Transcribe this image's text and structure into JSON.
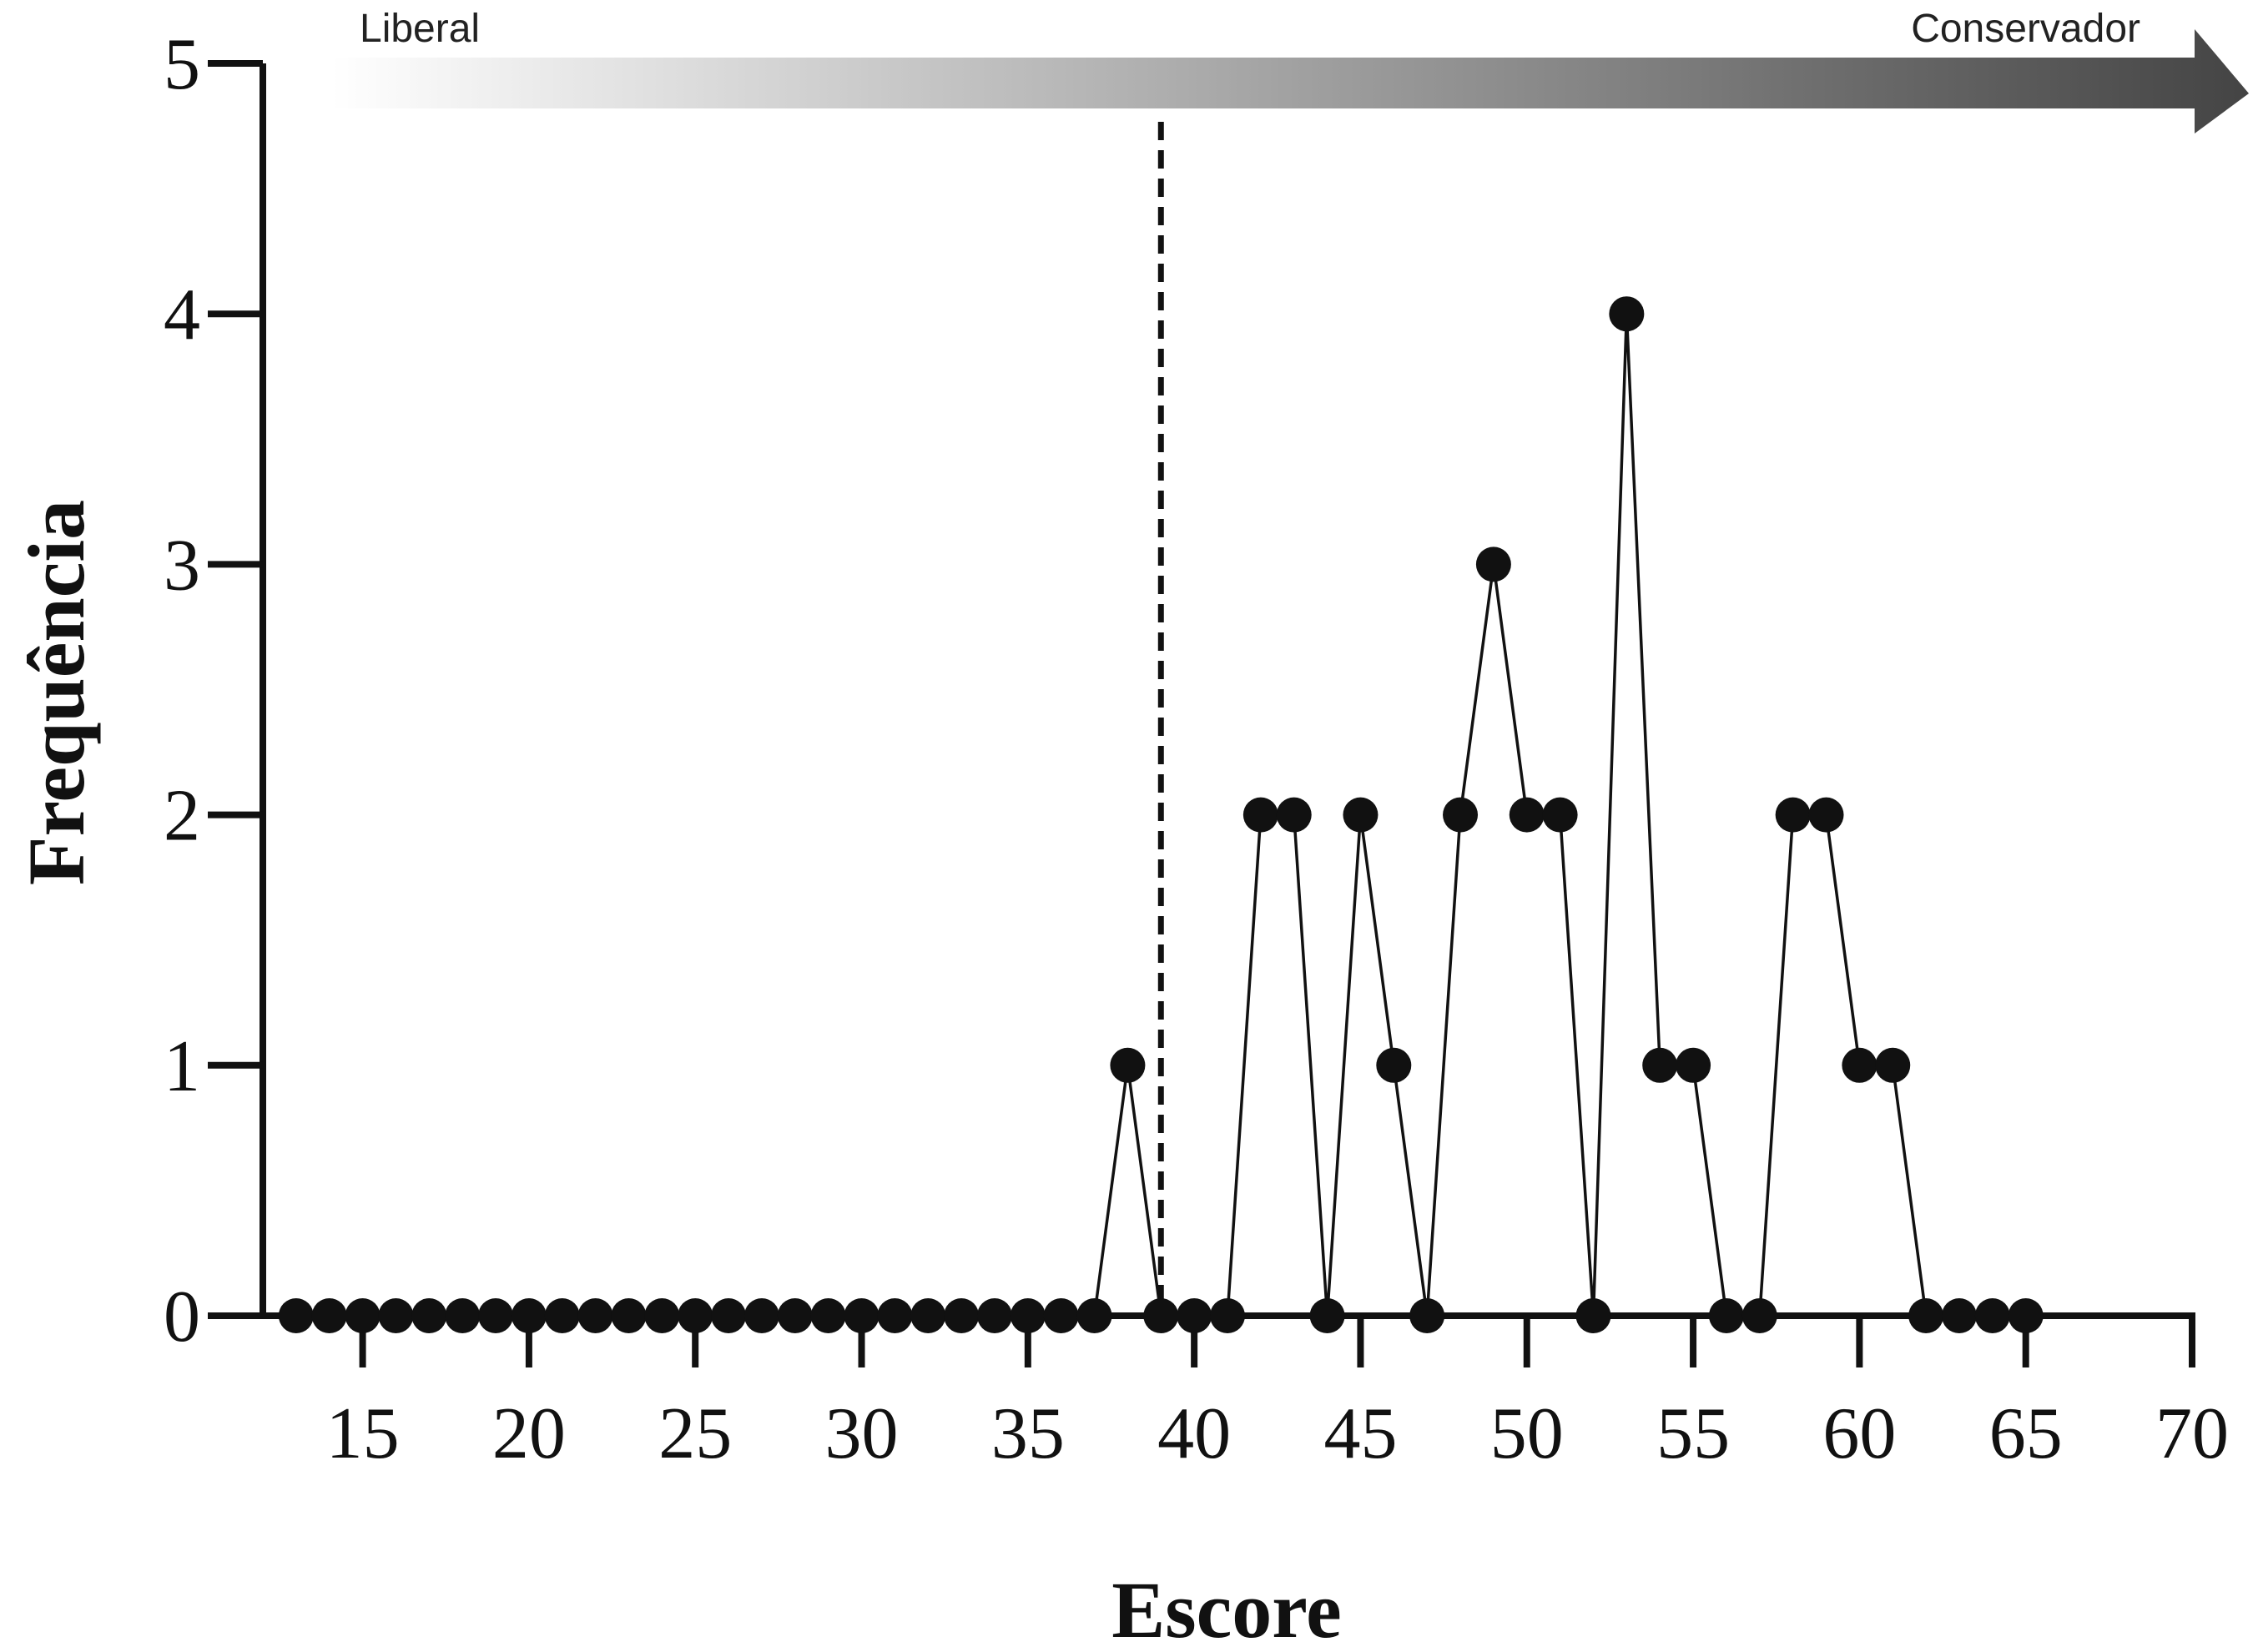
{
  "chart_data": {
    "type": "line",
    "x_label": "Escore",
    "y_label": "Frequência",
    "arrow_labels": [
      "Liberal",
      "Conservador"
    ],
    "x": [
      13,
      14,
      15,
      16,
      17,
      18,
      19,
      20,
      21,
      22,
      23,
      24,
      25,
      26,
      27,
      28,
      29,
      30,
      31,
      32,
      33,
      34,
      35,
      36,
      37,
      38,
      39,
      40,
      41,
      42,
      43,
      44,
      45,
      46,
      47,
      48,
      49,
      50,
      51,
      52,
      53,
      54,
      55,
      56,
      57,
      58,
      59,
      60,
      61,
      62,
      63,
      64,
      65
    ],
    "series": [
      {
        "color": "#111111",
        "values": [
          0,
          0,
          0,
          0,
          0,
          0,
          0,
          0,
          0,
          0,
          0,
          0,
          0,
          0,
          0,
          0,
          0,
          0,
          0,
          0,
          0,
          0,
          0,
          0,
          0,
          1,
          0,
          0,
          0,
          2,
          2,
          0,
          2,
          1,
          0,
          2,
          3,
          2,
          2,
          0,
          4,
          1,
          1,
          0,
          0,
          2,
          2,
          1,
          1,
          0,
          0,
          0,
          0
        ]
      }
    ],
    "reference_line_x": 39,
    "xlim": [
      12,
      70
    ],
    "xticks": [
      15,
      20,
      25,
      30,
      35,
      40,
      45,
      50,
      55,
      60,
      65,
      70
    ],
    "ylim": [
      0,
      5
    ],
    "yticks": [
      0,
      1,
      2,
      3,
      4,
      5
    ]
  }
}
